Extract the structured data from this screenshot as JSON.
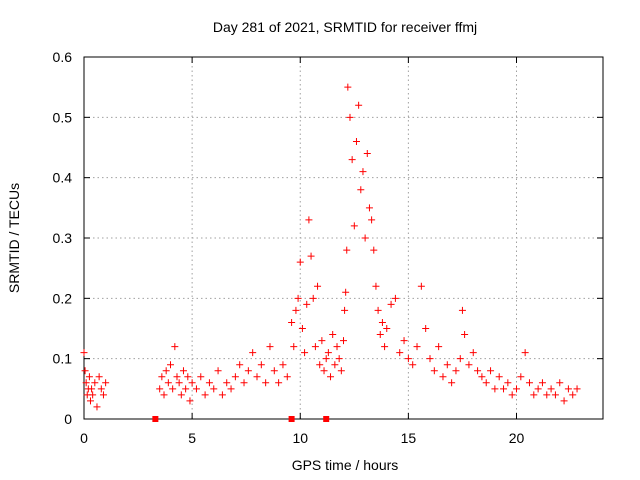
{
  "chart_data": {
    "type": "scatter",
    "title": "Day 281 of 2021, SRMTID for receiver ffmj",
    "xlabel": "GPS time / hours",
    "ylabel": "SRMTID / TECUs",
    "xlim": [
      0,
      24
    ],
    "ylim": [
      0,
      0.6
    ],
    "xticks": [
      0,
      5,
      10,
      15,
      20
    ],
    "yticks": [
      0,
      0.1,
      0.2,
      0.3,
      0.4,
      0.5,
      0.6
    ],
    "xtick_labels": [
      "0",
      "5",
      "10",
      "15",
      "20"
    ],
    "ytick_labels": [
      "0",
      "0.1",
      "0.2",
      "0.3",
      "0.4",
      "0.5",
      "0.6"
    ],
    "grid": true,
    "marker": "plus",
    "color": "#ff0000",
    "series": [
      {
        "name": "SRMTID",
        "x": [
          0.0,
          0.05,
          0.1,
          0.15,
          0.2,
          0.25,
          0.3,
          0.35,
          0.4,
          0.5,
          0.6,
          0.7,
          0.8,
          0.9,
          1.0,
          3.5,
          3.6,
          3.7,
          3.8,
          3.9,
          4.0,
          4.1,
          4.2,
          4.3,
          4.4,
          4.5,
          4.6,
          4.7,
          4.8,
          4.9,
          5.0,
          5.2,
          5.4,
          5.6,
          5.8,
          6.0,
          6.2,
          6.4,
          6.6,
          6.8,
          7.0,
          7.2,
          7.4,
          7.6,
          7.8,
          8.0,
          8.2,
          8.4,
          8.6,
          8.8,
          9.0,
          9.2,
          9.4,
          9.6,
          9.7,
          9.8,
          9.9,
          10.0,
          10.1,
          10.2,
          10.3,
          10.4,
          10.5,
          10.6,
          10.7,
          10.8,
          10.9,
          11.0,
          11.1,
          11.2,
          11.3,
          11.4,
          11.5,
          11.6,
          11.7,
          11.8,
          11.9,
          12.0,
          12.05,
          12.1,
          12.15,
          12.2,
          12.3,
          12.4,
          12.5,
          12.6,
          12.7,
          12.8,
          12.9,
          13.0,
          13.1,
          13.2,
          13.3,
          13.4,
          13.5,
          13.6,
          13.7,
          13.8,
          13.9,
          14.0,
          14.2,
          14.4,
          14.6,
          14.8,
          15.0,
          15.2,
          15.4,
          15.6,
          15.8,
          16.0,
          16.2,
          16.4,
          16.6,
          16.8,
          17.0,
          17.2,
          17.4,
          17.5,
          17.6,
          17.8,
          18.0,
          18.2,
          18.4,
          18.6,
          18.8,
          19.0,
          19.2,
          19.4,
          19.6,
          19.8,
          20.0,
          20.2,
          20.4,
          20.6,
          20.8,
          21.0,
          21.2,
          21.4,
          21.6,
          21.8,
          22.0,
          22.2,
          22.4,
          22.6,
          22.8
        ],
        "y": [
          0.11,
          0.08,
          0.06,
          0.04,
          0.05,
          0.07,
          0.03,
          0.05,
          0.04,
          0.06,
          0.02,
          0.07,
          0.05,
          0.04,
          0.06,
          0.05,
          0.07,
          0.04,
          0.08,
          0.06,
          0.09,
          0.05,
          0.12,
          0.07,
          0.06,
          0.04,
          0.08,
          0.05,
          0.07,
          0.03,
          0.06,
          0.05,
          0.07,
          0.04,
          0.06,
          0.05,
          0.08,
          0.04,
          0.06,
          0.05,
          0.07,
          0.09,
          0.06,
          0.08,
          0.11,
          0.07,
          0.09,
          0.06,
          0.12,
          0.08,
          0.06,
          0.09,
          0.07,
          0.16,
          0.12,
          0.18,
          0.2,
          0.26,
          0.15,
          0.11,
          0.19,
          0.33,
          0.27,
          0.2,
          0.12,
          0.22,
          0.09,
          0.13,
          0.08,
          0.1,
          0.11,
          0.07,
          0.14,
          0.09,
          0.12,
          0.1,
          0.08,
          0.13,
          0.18,
          0.21,
          0.28,
          0.55,
          0.5,
          0.43,
          0.32,
          0.46,
          0.52,
          0.38,
          0.41,
          0.3,
          0.44,
          0.35,
          0.33,
          0.28,
          0.22,
          0.18,
          0.14,
          0.16,
          0.12,
          0.15,
          0.19,
          0.2,
          0.11,
          0.13,
          0.1,
          0.09,
          0.12,
          0.22,
          0.15,
          0.1,
          0.08,
          0.12,
          0.07,
          0.09,
          0.06,
          0.08,
          0.1,
          0.18,
          0.14,
          0.09,
          0.11,
          0.08,
          0.07,
          0.06,
          0.08,
          0.05,
          0.07,
          0.05,
          0.06,
          0.04,
          0.05,
          0.07,
          0.11,
          0.06,
          0.04,
          0.05,
          0.06,
          0.04,
          0.05,
          0.04,
          0.06,
          0.03,
          0.05,
          0.04,
          0.05
        ]
      }
    ],
    "marker_points": [
      {
        "x": 3.3,
        "y": 0
      },
      {
        "x": 9.6,
        "y": 0
      },
      {
        "x": 11.2,
        "y": 0
      }
    ]
  }
}
